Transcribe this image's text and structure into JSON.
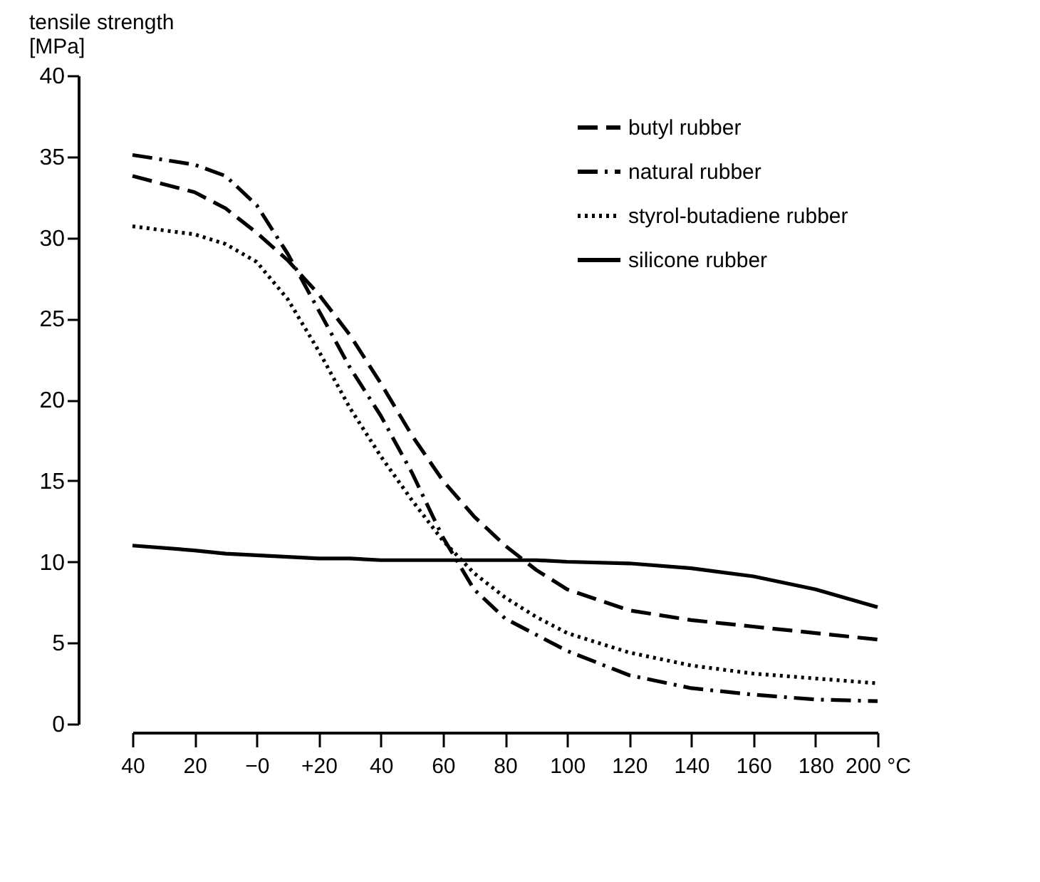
{
  "chart_data": {
    "type": "line",
    "ylabel": "tensile strength\n[MPa]",
    "x": [
      -40,
      -20,
      -10,
      0,
      10,
      20,
      30,
      40,
      50,
      60,
      70,
      80,
      90,
      100,
      120,
      140,
      160,
      180,
      200
    ],
    "xlim": [
      -40,
      200
    ],
    "xticks": [
      {
        "value": -40,
        "label": "40"
      },
      {
        "value": -20,
        "label": "20"
      },
      {
        "value": 0,
        "label": "−0"
      },
      {
        "value": 20,
        "label": "+20"
      },
      40,
      60,
      80,
      100,
      120,
      140,
      160,
      180,
      {
        "value": 200,
        "label": "200 °C"
      }
    ],
    "ylim": [
      0,
      40
    ],
    "yticks": [
      0,
      5,
      10,
      15,
      20,
      25,
      30,
      35,
      40
    ],
    "grid": false,
    "legend": "top right",
    "series": [
      {
        "name": "butyl rubber",
        "color": "#000000",
        "line_style": "dashed",
        "values": [
          33.8,
          32.8,
          31.8,
          30.3,
          28.6,
          26.5,
          24,
          21,
          17.8,
          15,
          12.8,
          11,
          9.5,
          8.3,
          7,
          6.4,
          6,
          5.6,
          5.2
        ]
      },
      {
        "name": "natural rubber",
        "color": "#000000",
        "line_style": "dashdot",
        "values": [
          35.1,
          34.5,
          33.8,
          32,
          29,
          25.5,
          22,
          19,
          15.5,
          11.5,
          8.3,
          6.5,
          5.5,
          4.5,
          3,
          2.2,
          1.8,
          1.5,
          1.4
        ]
      },
      {
        "name": "styrol-butadiene rubber",
        "color": "#000000",
        "line_style": "dotted",
        "values": [
          30.7,
          30.2,
          29.6,
          28.5,
          26.2,
          23,
          19.5,
          16.5,
          13.8,
          11.3,
          9.3,
          7.8,
          6.6,
          5.6,
          4.4,
          3.6,
          3.1,
          2.8,
          2.5
        ]
      },
      {
        "name": "silicone rubber",
        "color": "#000000",
        "line_style": "solid",
        "values": [
          11,
          10.7,
          10.5,
          10.4,
          10.3,
          10.2,
          10.2,
          10.1,
          10.1,
          10.1,
          10.1,
          10.1,
          10.1,
          10,
          9.9,
          9.6,
          9.1,
          8.3,
          7.2
        ]
      }
    ]
  }
}
